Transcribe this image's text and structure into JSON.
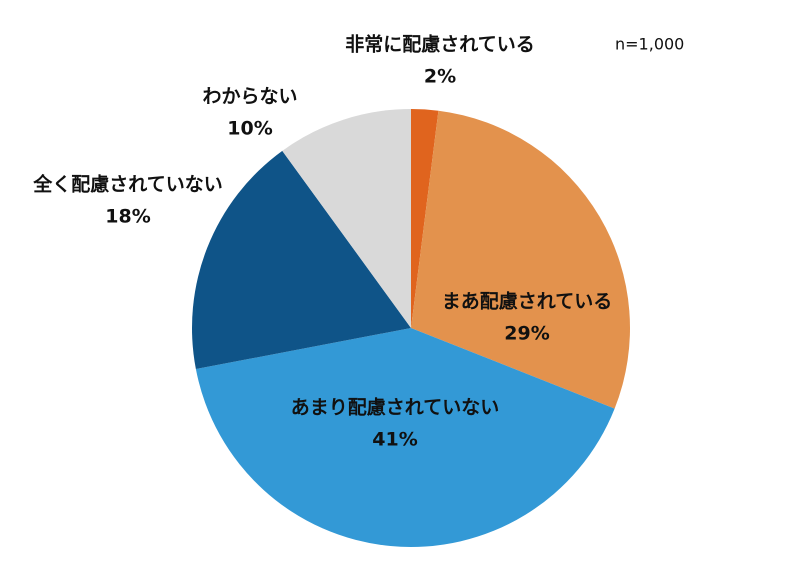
{
  "chart_data": {
    "type": "pie",
    "annotation": "n=1,000",
    "categories": [
      "非常に配慮されている",
      "まあ配慮されている",
      "あまり配慮されていない",
      "全く配慮されていない",
      "わからない"
    ],
    "values": [
      2,
      29,
      41,
      18,
      10
    ],
    "value_labels": [
      "2%",
      "29%",
      "41%",
      "18%",
      "10%"
    ],
    "colors": [
      "#e0641e",
      "#e3924d",
      "#3399d6",
      "#0f5488",
      "#d9d9d9"
    ]
  }
}
